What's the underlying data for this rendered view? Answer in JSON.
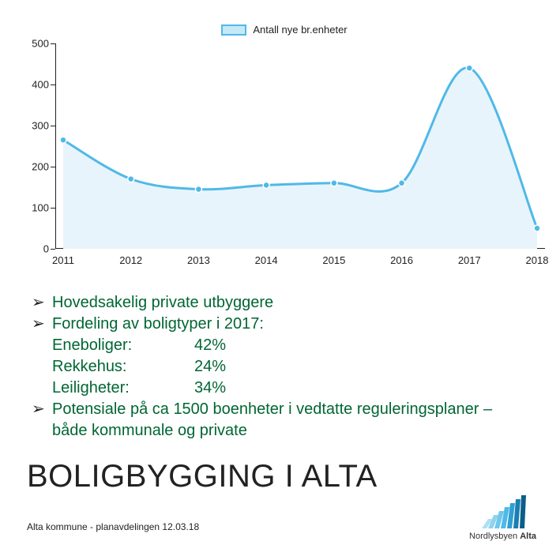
{
  "chart": {
    "type": "area",
    "legend_label": "Antall nye br.enheter",
    "line_color": "#4fb9e8",
    "fill_color": "#e8f4fb",
    "marker_color": "#4fb9e8",
    "marker_border": "#ffffff",
    "background_color": "#ffffff",
    "axis_color": "#222222",
    "text_color": "#222222",
    "label_fontsize": 13,
    "legend_swatch_fill": "#c5e8f7",
    "legend_swatch_border": "#4fb9e8",
    "xlim": [
      2011,
      2018
    ],
    "ylim": [
      0,
      500
    ],
    "ytick_step": 100,
    "yticks": [
      0,
      100,
      200,
      300,
      400,
      500
    ],
    "xticks": [
      2011,
      2012,
      2013,
      2014,
      2015,
      2016,
      2017,
      2018
    ],
    "values": [
      265,
      170,
      145,
      155,
      160,
      160,
      440,
      50
    ],
    "line_width": 3,
    "marker_radius": 4
  },
  "bullets": {
    "color": "#006633",
    "fontsize": 20,
    "items": [
      {
        "text": "Hovedsakelig private utbyggere"
      },
      {
        "text": "Fordeling av boligtyper i 2017:",
        "sub": [
          {
            "label": "Eneboliger:",
            "value": "42%"
          },
          {
            "label": "Rekkehus:",
            "value": "24%"
          },
          {
            "label": "Leiligheter:",
            "value": "34%"
          }
        ]
      },
      {
        "text": "Potensiale på ca 1500 boenheter i vedtatte reguleringsplaner – både kommunale og private"
      }
    ]
  },
  "heading": "BOLIGBYGGING I ALTA",
  "footer": "Alta kommune - planavdelingen 12.03.18",
  "logo": {
    "bar_colors": [
      "#b0dff4",
      "#8fd3ef",
      "#6fc7ea",
      "#4fb9e8",
      "#2f9fd4",
      "#1a7fb0",
      "#0a5f8a"
    ],
    "text_color": "#333333",
    "prefix": "Nordlysbyen ",
    "strong": "Alta"
  }
}
